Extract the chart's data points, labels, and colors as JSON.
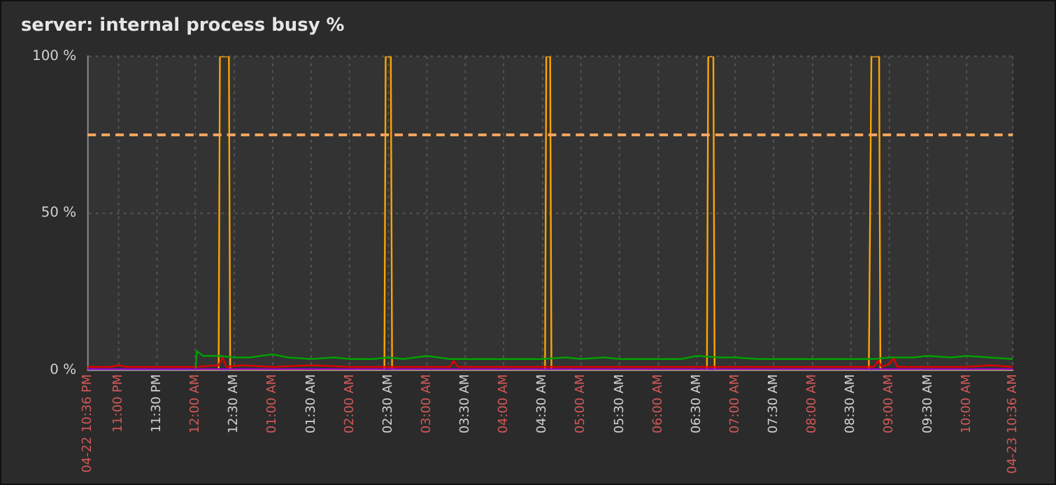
{
  "chart_data": {
    "type": "line",
    "title": "server: internal process busy %",
    "xlim": [
      "--04-22T22:36",
      "--04-23T10:36"
    ],
    "xticks": [
      {
        "value": "--04-22T22:36",
        "label": "04-22 10:36 PM"
      },
      {
        "value": "--04-22T23:00",
        "label": "11:00 PM"
      },
      {
        "value": "--04-22T23:30",
        "label": "11:30 PM"
      },
      {
        "value": "--04-23T00:00",
        "label": "12:00 AM"
      },
      {
        "value": "--04-23T00:30",
        "label": "12:30 AM"
      },
      {
        "value": "--04-23T01:00",
        "label": "01:00 AM"
      },
      {
        "value": "--04-23T01:30",
        "label": "01:30 AM"
      },
      {
        "value": "--04-23T02:00",
        "label": "02:00 AM"
      },
      {
        "value": "--04-23T02:30",
        "label": "02:30 AM"
      },
      {
        "value": "--04-23T03:00",
        "label": "03:00 AM"
      },
      {
        "value": "--04-23T03:30",
        "label": "03:30 AM"
      },
      {
        "value": "--04-23T04:00",
        "label": "04:00 AM"
      },
      {
        "value": "--04-23T04:30",
        "label": "04:30 AM"
      },
      {
        "value": "--04-23T05:00",
        "label": "05:00 AM"
      },
      {
        "value": "--04-23T05:30",
        "label": "05:30 AM"
      },
      {
        "value": "--04-23T06:00",
        "label": "06:00 AM"
      },
      {
        "value": "--04-23T06:30",
        "label": "06:30 AM"
      },
      {
        "value": "--04-23T07:00",
        "label": "07:00 AM"
      },
      {
        "value": "--04-23T07:30",
        "label": "07:30 AM"
      },
      {
        "value": "--04-23T08:00",
        "label": "08:00 AM"
      },
      {
        "value": "--04-23T08:30",
        "label": "08:30 AM"
      },
      {
        "value": "--04-23T09:00",
        "label": "09:00 AM"
      },
      {
        "value": "--04-23T09:30",
        "label": "09:30 AM"
      },
      {
        "value": "--04-23T10:00",
        "label": "10:00 AM"
      },
      {
        "value": "--04-23T10:36",
        "label": "04-23 10:36 AM"
      }
    ],
    "ylim": [
      0,
      100
    ],
    "yticks": [
      {
        "value": 0,
        "label": "0 %"
      },
      {
        "value": 50,
        "label": "50 %"
      },
      {
        "value": 100,
        "label": "100 %"
      }
    ],
    "grid": true,
    "legend": false,
    "marker": "none",
    "line_style": "solid",
    "ref_lines": [
      {
        "axis": "y",
        "value": 75,
        "color": "#f4a460",
        "line_style": "dashed"
      }
    ],
    "series": [
      {
        "color": "#9900cc",
        "x": [
          "--04-22T22:36",
          "--04-23T00:00",
          "--04-23T02:00",
          "--04-23T04:00",
          "--04-23T06:00",
          "--04-23T08:00",
          "--04-23T10:36"
        ],
        "values": [
          0.3,
          0.3,
          0.3,
          0.3,
          0.3,
          0.3,
          0.3
        ]
      },
      {
        "color": "#00a000",
        "x": [
          "--04-23T00:00",
          "--04-23T00:01",
          "--04-23T00:06",
          "--04-23T00:18",
          "--04-23T00:30",
          "--04-23T00:42",
          "--04-23T01:00",
          "--04-23T01:12",
          "--04-23T01:30",
          "--04-23T01:48",
          "--04-23T02:00",
          "--04-23T02:18",
          "--04-23T02:30",
          "--04-23T02:42",
          "--04-23T03:00",
          "--04-23T03:18",
          "--04-23T03:30",
          "--04-23T03:48",
          "--04-23T04:00",
          "--04-23T04:18",
          "--04-23T04:30",
          "--04-23T04:48",
          "--04-23T05:00",
          "--04-23T05:18",
          "--04-23T05:30",
          "--04-23T05:48",
          "--04-23T06:00",
          "--04-23T06:18",
          "--04-23T06:30",
          "--04-23T06:48",
          "--04-23T07:00",
          "--04-23T07:18",
          "--04-23T07:30",
          "--04-23T07:48",
          "--04-23T08:00",
          "--04-23T08:18",
          "--04-23T08:30",
          "--04-23T08:48",
          "--04-23T09:00",
          "--04-23T09:18",
          "--04-23T09:30",
          "--04-23T09:48",
          "--04-23T10:00",
          "--04-23T10:18",
          "--04-23T10:36"
        ],
        "values": [
          0,
          6,
          4.5,
          4.5,
          4,
          4,
          5,
          4,
          3.5,
          4,
          3.5,
          3.5,
          4,
          3.5,
          4.5,
          3.5,
          3.5,
          3.5,
          3.5,
          3.5,
          3.5,
          4,
          3.5,
          4,
          3.5,
          3.5,
          3.5,
          3.5,
          4.5,
          4,
          4,
          3.5,
          3.5,
          3.5,
          3.5,
          3.5,
          3.5,
          3.5,
          4,
          4,
          4.5,
          4,
          4.5,
          4,
          3.5
        ]
      },
      {
        "color": "#e00000",
        "x": [
          "--04-22T22:36",
          "--04-22T22:54",
          "--04-22T23:00",
          "--04-22T23:06",
          "--04-22T23:30",
          "--04-23T00:00",
          "--04-23T00:18",
          "--04-23T00:21",
          "--04-23T00:24",
          "--04-23T00:36",
          "--04-23T01:00",
          "--04-23T01:30",
          "--04-23T02:00",
          "--04-23T02:30",
          "--04-23T03:00",
          "--04-23T03:18",
          "--04-23T03:21",
          "--04-23T03:24",
          "--04-23T03:48",
          "--04-23T04:00",
          "--04-23T04:30",
          "--04-23T05:00",
          "--04-23T05:18",
          "--04-23T05:30",
          "--04-23T06:00",
          "--04-23T06:30",
          "--04-23T07:00",
          "--04-23T07:30",
          "--04-23T08:00",
          "--04-23T08:30",
          "--04-23T08:48",
          "--04-23T08:51",
          "--04-23T08:54",
          "--04-23T09:00",
          "--04-23T09:03",
          "--04-23T09:06",
          "--04-23T09:30",
          "--04-23T10:00",
          "--04-23T10:18",
          "--04-23T10:36"
        ],
        "values": [
          1,
          1,
          1.5,
          1,
          1,
          1,
          1.5,
          4,
          1,
          1.5,
          1,
          1.5,
          1,
          1,
          1,
          1,
          3,
          1,
          1,
          1,
          1,
          1,
          1,
          1,
          1,
          1,
          1,
          1,
          1,
          1,
          1,
          3,
          1,
          2,
          4,
          1,
          1,
          1,
          1.5,
          1
        ]
      },
      {
        "color": "#ffa500",
        "x": [
          "--04-23T00:00",
          "--04-23T00:18",
          "--04-23T00:19",
          "--04-23T00:26",
          "--04-23T00:27",
          "--04-23T02:27",
          "--04-23T02:28",
          "--04-23T02:32",
          "--04-23T02:33",
          "--04-23T04:32",
          "--04-23T04:33",
          "--04-23T04:36",
          "--04-23T04:37",
          "--04-23T06:38",
          "--04-23T06:39",
          "--04-23T06:43",
          "--04-23T06:44",
          "--04-23T08:44",
          "--04-23T08:46",
          "--04-23T08:52",
          "--04-23T08:53",
          "--04-23T10:36"
        ],
        "values": [
          0,
          0,
          100,
          100,
          0,
          0,
          100,
          100,
          0,
          0,
          100,
          100,
          0,
          0,
          100,
          100,
          0,
          0,
          100,
          100,
          0,
          0
        ]
      }
    ]
  }
}
